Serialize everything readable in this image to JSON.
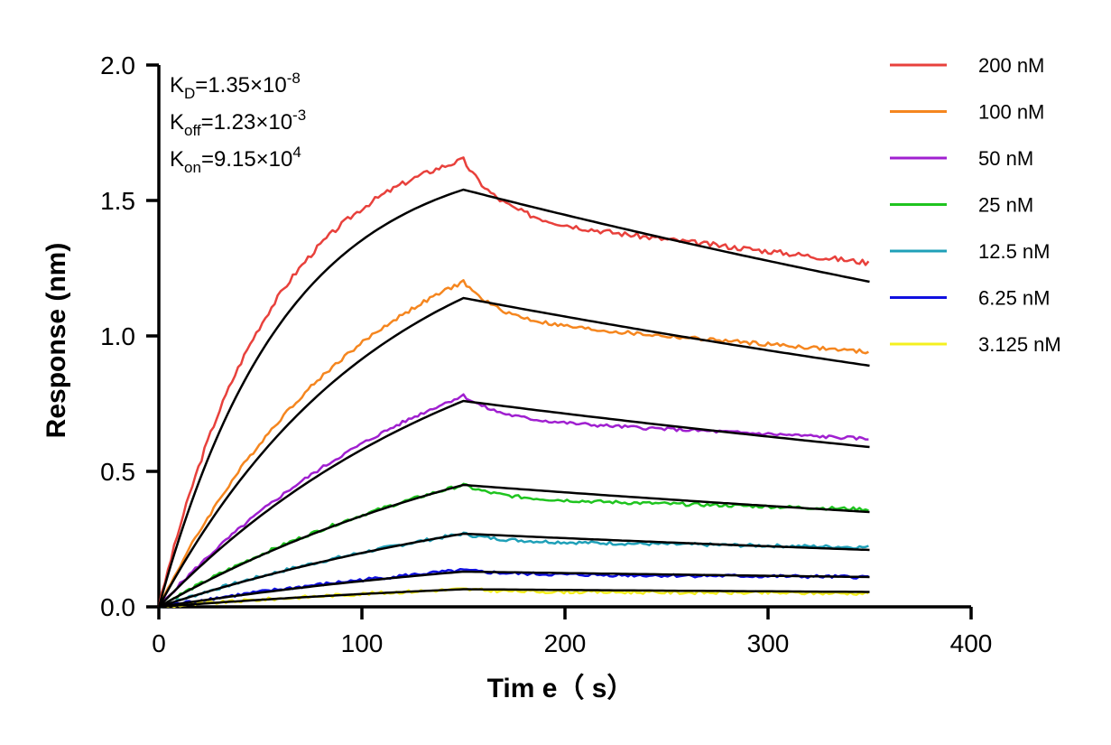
{
  "chart_data": {
    "type": "line",
    "xlabel": "Tim e（ s）",
    "ylabel": "Response (nm)",
    "xlim": [
      0,
      400
    ],
    "ylim": [
      0,
      2.0
    ],
    "x_ticks": [
      "0",
      "100",
      "200",
      "300",
      "400"
    ],
    "y_ticks": [
      "0.0",
      "0.5",
      "1.0",
      "1.5",
      "2.0"
    ],
    "grid": false,
    "legend_position": "top-right",
    "association_end": 150,
    "x_end": 350,
    "series": [
      {
        "name": "200 nM",
        "color": "#e8413c",
        "peak": 1.65,
        "end": 1.27,
        "fit_peak": 1.54,
        "fit_end": 1.2,
        "fit_tau": 62
      },
      {
        "name": "100 nM",
        "color": "#f5861f",
        "peak": 1.2,
        "end": 0.94,
        "fit_peak": 1.14,
        "fit_end": 0.89,
        "fit_tau": 110
      },
      {
        "name": "50 nM",
        "color": "#a020d0",
        "peak": 0.78,
        "end": 0.62,
        "fit_peak": 0.76,
        "fit_end": 0.59,
        "fit_tau": 160
      },
      {
        "name": "25 nM",
        "color": "#1fc41f",
        "peak": 0.45,
        "end": 0.36,
        "fit_peak": 0.45,
        "fit_end": 0.35,
        "fit_tau": 200
      },
      {
        "name": "12.5 nM",
        "color": "#1fa0b8",
        "peak": 0.27,
        "end": 0.22,
        "fit_peak": 0.27,
        "fit_end": 0.21,
        "fit_tau": 230
      },
      {
        "name": "6.25 nM",
        "color": "#1010e0",
        "peak": 0.135,
        "end": 0.11,
        "fit_peak": 0.13,
        "fit_end": 0.11,
        "fit_tau": 250
      },
      {
        "name": "3.125 nM",
        "color": "#f5f01f",
        "peak": 0.065,
        "end": 0.05,
        "fit_peak": 0.065,
        "fit_end": 0.055,
        "fit_tau": 260
      }
    ],
    "annotations": [
      {
        "main": "K",
        "sub": "D",
        "rest": "=1.35×10",
        "sup": "-8"
      },
      {
        "main": "K",
        "sub": "off",
        "rest": "=1.23×10",
        "sup": "-3"
      },
      {
        "main": "K",
        "sub": "on",
        "rest": "=9.15×10",
        "sup": "4"
      }
    ]
  }
}
